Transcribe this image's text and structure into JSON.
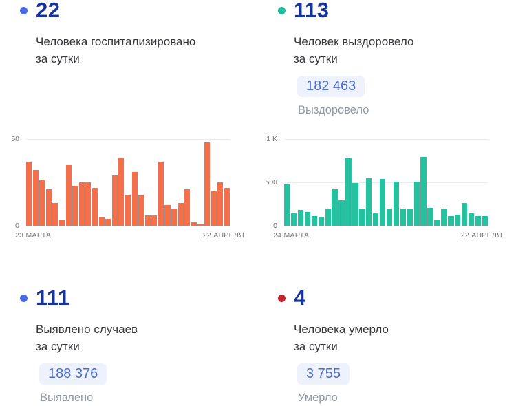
{
  "panels": {
    "hospitalized": {
      "bullet_color": "#4A6CE8",
      "value": "22",
      "subtitle_line1": "Человека госпитализировано",
      "subtitle_line2": "за сутки"
    },
    "recovered": {
      "bullet_color": "#1EBEA0",
      "value": "113",
      "subtitle_line1": "Человек выздоровело",
      "subtitle_line2": "за сутки",
      "total_value": "182 463",
      "total_label": "Выздоровело"
    },
    "detected": {
      "bullet_color": "#4A6CE8",
      "value": "111",
      "subtitle_line1": "Выявлено случаев",
      "subtitle_line2": "за сутки",
      "total_value": "188 376",
      "total_label": "Выявлено"
    },
    "deaths": {
      "bullet_color": "#C62330",
      "value": "4",
      "subtitle_line1": "Человека умерло",
      "subtitle_line2": "за сутки",
      "total_value": "3 755",
      "total_label": "Умерло"
    }
  },
  "colors": {
    "headline_text": "#16349B",
    "subtitle_text": "#36373B",
    "badge_background": "#EEF2FC",
    "badge_text": "#4A6BD3",
    "badge_label_text": "#9199A6",
    "axis_text": "#757575",
    "gridline": "#EBEBEB",
    "baseline": "#D9D9D9",
    "bar_orange": "#F5704A",
    "bar_teal": "#25C2A0"
  },
  "chart_data": [
    {
      "type": "bar",
      "title": "Человека госпитализировано за сутки",
      "x_start_label": "23 МАРТА",
      "x_end_label": "22 АПРЕЛЯ",
      "xlabel": "",
      "ylabel": "",
      "ylim": [
        0,
        50
      ],
      "grid": true,
      "legend_position": "none",
      "bar_color": "#F5704A",
      "y_ticks": [
        {
          "value": 0,
          "label": "0"
        },
        {
          "value": 50,
          "label": "50"
        }
      ],
      "values": [
        37,
        32,
        26,
        21,
        13,
        3,
        35,
        23,
        25,
        25,
        22,
        5,
        4,
        29,
        39,
        18,
        31,
        18,
        6,
        6,
        37,
        12,
        10,
        13,
        21,
        2,
        1,
        48,
        20,
        25,
        22
      ]
    },
    {
      "type": "bar",
      "title": "Человек выздоровело за сутки",
      "x_start_label": "24 МАРТА",
      "x_end_label": "22 АПРЕЛЯ",
      "xlabel": "",
      "ylabel": "",
      "ylim": [
        0,
        1000
      ],
      "grid": true,
      "legend_position": "none",
      "bar_color": "#25C2A0",
      "y_ticks": [
        {
          "value": 0,
          "label": "0"
        },
        {
          "value": 500,
          "label": "500"
        },
        {
          "value": 1000,
          "label": "1 K"
        }
      ],
      "values": [
        480,
        140,
        180,
        155,
        115,
        100,
        200,
        420,
        290,
        780,
        490,
        200,
        545,
        150,
        540,
        200,
        510,
        200,
        190,
        510,
        790,
        210,
        60,
        195,
        110,
        130,
        260,
        145,
        110,
        113
      ]
    }
  ]
}
